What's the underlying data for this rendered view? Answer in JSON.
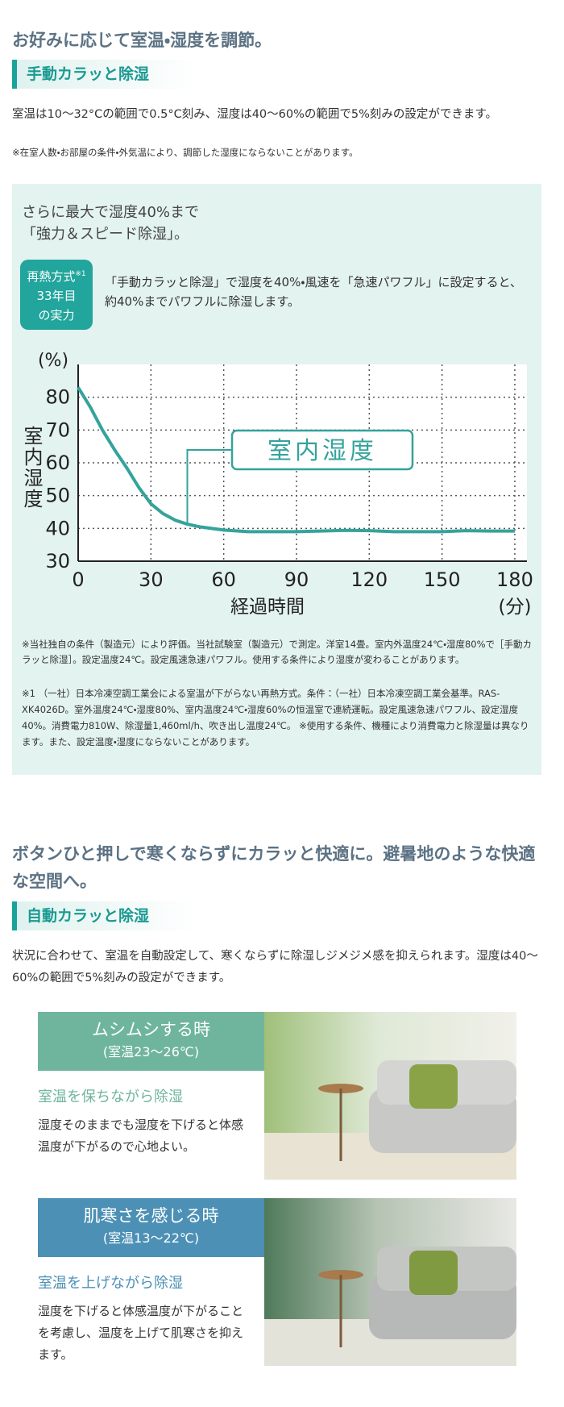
{
  "section1": {
    "heading": "お好みに応じて室温・湿度を調節。",
    "tag": "手動カラッと除湿",
    "text": "室温は10～32°Cの範囲で0.5°C刻み、湿度は40～60%の範囲で5%刻みの設定ができます。",
    "note": "※在室人数・お部屋の条件・外気温により、調節した湿度にならないことがあります。"
  },
  "feature": {
    "title_lines": [
      "さらに最大で湿度40%まで",
      "「強力＆スピード除湿」。"
    ],
    "badge": {
      "lines": [
        "再熱方式",
        "33年目",
        "の実力"
      ],
      "sup": "※1"
    },
    "text": "「手動カラッと除湿」で湿度を40%・風速を「急速パワフル」に設定すると、約40%までパワフルに除湿します。",
    "notes": [
      "※当社独自の条件（製造元）により評価。当社試験室（製造元）で測定。洋室14畳。室内外温度24℃・湿度80%で［手動カラッと除湿］。設定温度24℃。設定風速急速パワフル。使用する条件により湿度が変わることがあります。",
      "※1 （一社）日本冷凍空調工業会による室温が下がらない再熱方式。条件：（一社）日本冷凍空調工業会基準。RAS-XK4026D。室外温度24℃・湿度80%、室内温度24℃・湿度60%の恒温室で連続運転。設定風速急速パワフル、設定湿度40%。消費電力810W、除湿量1,460ml/h、吹き出し温度24℃。 ※使用する条件、機種により消費電力と除湿量は異なります。また、設定温度・湿度にならないことがあります。"
    ]
  },
  "chart_data": {
    "type": "line",
    "y_unit": "(%)",
    "y_label": "室内湿度",
    "x_label": "経過時間",
    "x_unit": "(分)",
    "annotation": "室内湿度",
    "x": [
      0,
      5,
      10,
      15,
      20,
      25,
      30,
      35,
      40,
      45,
      50,
      60,
      70,
      80,
      90,
      100,
      110,
      120,
      130,
      140,
      150,
      160,
      170,
      180
    ],
    "series": [
      {
        "name": "室内湿度",
        "color": "#34a39b",
        "values": [
          83,
          77,
          70,
          64,
          58.5,
          52.5,
          47.5,
          44.5,
          42.5,
          41.3,
          40.5,
          39.5,
          39,
          39,
          39,
          39.2,
          39.4,
          39.3,
          39,
          39,
          39,
          39.3,
          39.2,
          39.2
        ]
      }
    ],
    "xlim": [
      0,
      185
    ],
    "ylim": [
      30,
      90
    ],
    "xticks": [
      0,
      30,
      60,
      90,
      120,
      150,
      180
    ],
    "yticks": [
      30,
      40,
      50,
      60,
      70,
      80
    ],
    "grid": true
  },
  "section2": {
    "heading": "ボタンひと押しで寒くならずにカラッと快適に。避暑地のような快適な空間へ。",
    "tag": "自動カラッと除湿",
    "text": "状況に合わせて、室温を自動設定して、寒くならずに除湿しジメジメ感を抑えられます。湿度は40～60%の範囲で5%刻みの設定ができます。",
    "cards": [
      {
        "title": "ムシムシする時",
        "subtitle": "(室温23～26℃)",
        "lead": "室温を保ちながら除湿",
        "text": "湿度そのままでも湿度を下げると体感温度が下がるので心地よい。"
      },
      {
        "title": "肌寒さを感じる時",
        "subtitle": "(室温13～22℃)",
        "lead": "室温を上げながら除湿",
        "text": "湿度を下げると体感温度が下がることを考慮し、温度を上げて肌寒さを抑えます。"
      }
    ]
  }
}
